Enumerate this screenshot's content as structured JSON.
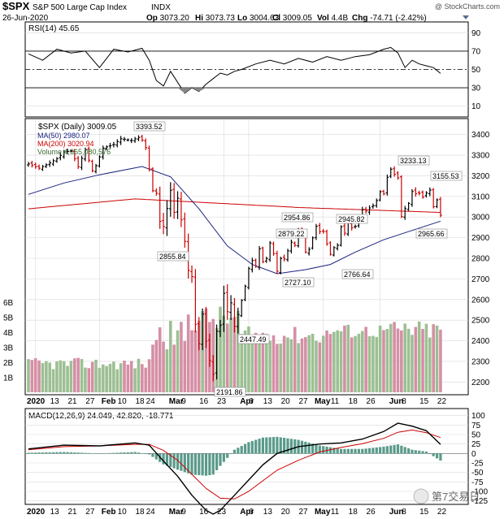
{
  "header": {
    "symbol": "$SPX",
    "name": "S&P 500 Large Cap Index",
    "exchange": "INDX",
    "copyright": "@ StockCharts.com",
    "date": "26-Jun-2020",
    "stats": [
      {
        "label": "Op",
        "value": "3073.20"
      },
      {
        "label": "Hi",
        "value": "3073.73"
      },
      {
        "label": "Lo",
        "value": "3004.63"
      },
      {
        "label": "Cl",
        "value": "3009.05"
      },
      {
        "label": "Vol",
        "value": "4.4B"
      },
      {
        "label": "Chg",
        "value": "-74.71 (-2.42%)"
      }
    ]
  },
  "rsi_panel": {
    "label": "RSI(14) 45.65",
    "ticks": [
      "90",
      "70",
      "50",
      "30",
      "10"
    ]
  },
  "price_panel": {
    "legend": {
      "title": "$SPX (Daily) 3009.05",
      "ma50": "MA(50) 2980.07",
      "ma200": "MA(200) 3020.94",
      "volume": "Volume 4,365,080,576"
    },
    "price_ticks": [
      "3400",
      "3300",
      "3200",
      "3100",
      "3000",
      "2900",
      "2800",
      "2700",
      "2600",
      "2500",
      "2400",
      "2300",
      "2200"
    ],
    "volume_ticks": [
      "6B",
      "5B",
      "4B",
      "3B",
      "2B",
      "1B"
    ],
    "annotations": [
      "3393.52",
      "3233.13",
      "3155.53",
      "2954.86",
      "2945.82",
      "2879.22",
      "2855.84",
      "2965.66",
      "2727.10",
      "2766.64",
      "2447.49",
      "2191.86"
    ]
  },
  "macd_panel": {
    "label": "MACD(12,26,9) 24.049, 42.820, -18.771",
    "ticks": [
      "100",
      "75",
      "50",
      "25",
      "0",
      "-25",
      "-50",
      "-75",
      "-100",
      "-125"
    ]
  },
  "x_axis": {
    "labels": [
      "2020",
      "13",
      "21",
      "27",
      "Feb",
      "10",
      "18",
      "24",
      "Mar",
      "9",
      "16",
      "23",
      "Apr",
      "6",
      "13",
      "20",
      "27",
      "May",
      "11",
      "18",
      "26",
      "Jun",
      "8",
      "15",
      "22"
    ]
  },
  "watermark": "第7交易日",
  "colors": {
    "up": "#000000",
    "down": "#cc0000",
    "ma50": "#1a237e",
    "ma200": "#cc0000",
    "vol_up": "#9dbf93",
    "vol_down": "#d58fa5",
    "panel_bg": "#ffffff",
    "grid": "#d9d9d9",
    "macd_hist": "#5a9a8a"
  },
  "chart_data": {
    "type": "candlestick",
    "title": "$SPX (Daily)",
    "price_range": [
      2150,
      3450
    ],
    "series": [
      {
        "name": "$SPX",
        "x": [
          "2020-01-02",
          "2020-02-19",
          "2020-03-23",
          "2020-06-08",
          "2020-06-26"
        ],
        "values": [
          3257.85,
          3386.15,
          2237.4,
          3232.39,
          3009.05
        ]
      },
      {
        "name": "MA(50)",
        "values": [
          2980.07
        ]
      },
      {
        "name": "MA(200)",
        "values": [
          3020.94
        ]
      }
    ],
    "annotations": [
      {
        "date": "2020-02-19",
        "value": 3393.52
      },
      {
        "date": "2020-02-28",
        "value": 2855.84
      },
      {
        "date": "2020-03-23",
        "value": 2191.86
      },
      {
        "date": "2020-03-26",
        "value": 2447.49
      },
      {
        "date": "2020-04-21",
        "value": 2727.1
      },
      {
        "date": "2020-04-29",
        "value": 2954.86
      },
      {
        "date": "2020-04-17",
        "value": 2879.22
      },
      {
        "date": "2020-05-14",
        "value": 2766.64
      },
      {
        "date": "2020-05-21",
        "value": 2945.82
      },
      {
        "date": "2020-06-08",
        "value": 3233.13
      },
      {
        "date": "2020-06-12",
        "value": 2965.66
      },
      {
        "date": "2020-06-17",
        "value": 3155.53
      }
    ],
    "volume_range": [
      0,
      7
    ],
    "rsi": {
      "period": 14,
      "last": 45.65,
      "range": [
        0,
        100
      ]
    },
    "macd": {
      "params": [
        12,
        26,
        9
      ],
      "macd": 24.049,
      "signal": 42.82,
      "histogram": -18.771,
      "range": [
        -130,
        110
      ]
    }
  }
}
